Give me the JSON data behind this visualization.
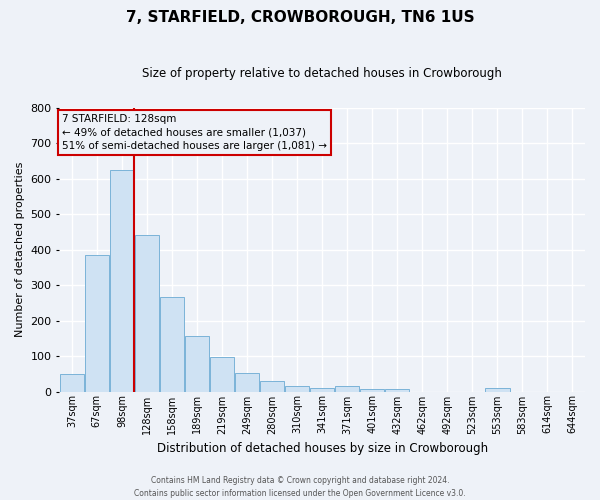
{
  "title": "7, STARFIELD, CROWBOROUGH, TN6 1US",
  "subtitle": "Size of property relative to detached houses in Crowborough",
  "xlabel": "Distribution of detached houses by size in Crowborough",
  "ylabel": "Number of detached properties",
  "bar_labels": [
    "37sqm",
    "67sqm",
    "98sqm",
    "128sqm",
    "158sqm",
    "189sqm",
    "219sqm",
    "249sqm",
    "280sqm",
    "310sqm",
    "341sqm",
    "371sqm",
    "401sqm",
    "432sqm",
    "462sqm",
    "492sqm",
    "523sqm",
    "553sqm",
    "583sqm",
    "614sqm",
    "644sqm"
  ],
  "bar_values": [
    50,
    385,
    625,
    443,
    267,
    157,
    98,
    52,
    30,
    15,
    10,
    15,
    8,
    8,
    0,
    0,
    0,
    10,
    0,
    0,
    0
  ],
  "bar_color": "#cfe2f3",
  "bar_edge_color": "#7ab3d8",
  "vline_color": "#cc0000",
  "vline_pos": 2.5,
  "ylim_min": 0,
  "ylim_max": 800,
  "yticks": [
    0,
    100,
    200,
    300,
    400,
    500,
    600,
    700,
    800
  ],
  "annotation_title": "7 STARFIELD: 128sqm",
  "annotation_line1": "← 49% of detached houses are smaller (1,037)",
  "annotation_line2": "51% of semi-detached houses are larger (1,081) →",
  "annotation_box_color": "#cc0000",
  "footer_line1": "Contains HM Land Registry data © Crown copyright and database right 2024.",
  "footer_line2": "Contains public sector information licensed under the Open Government Licence v3.0.",
  "background_color": "#eef2f8",
  "grid_color": "#ffffff",
  "title_fontsize": 11,
  "subtitle_fontsize": 8.5,
  "ylabel_fontsize": 8,
  "xlabel_fontsize": 8.5,
  "tick_fontsize": 7,
  "ann_fontsize": 7.5,
  "footer_fontsize": 5.5
}
